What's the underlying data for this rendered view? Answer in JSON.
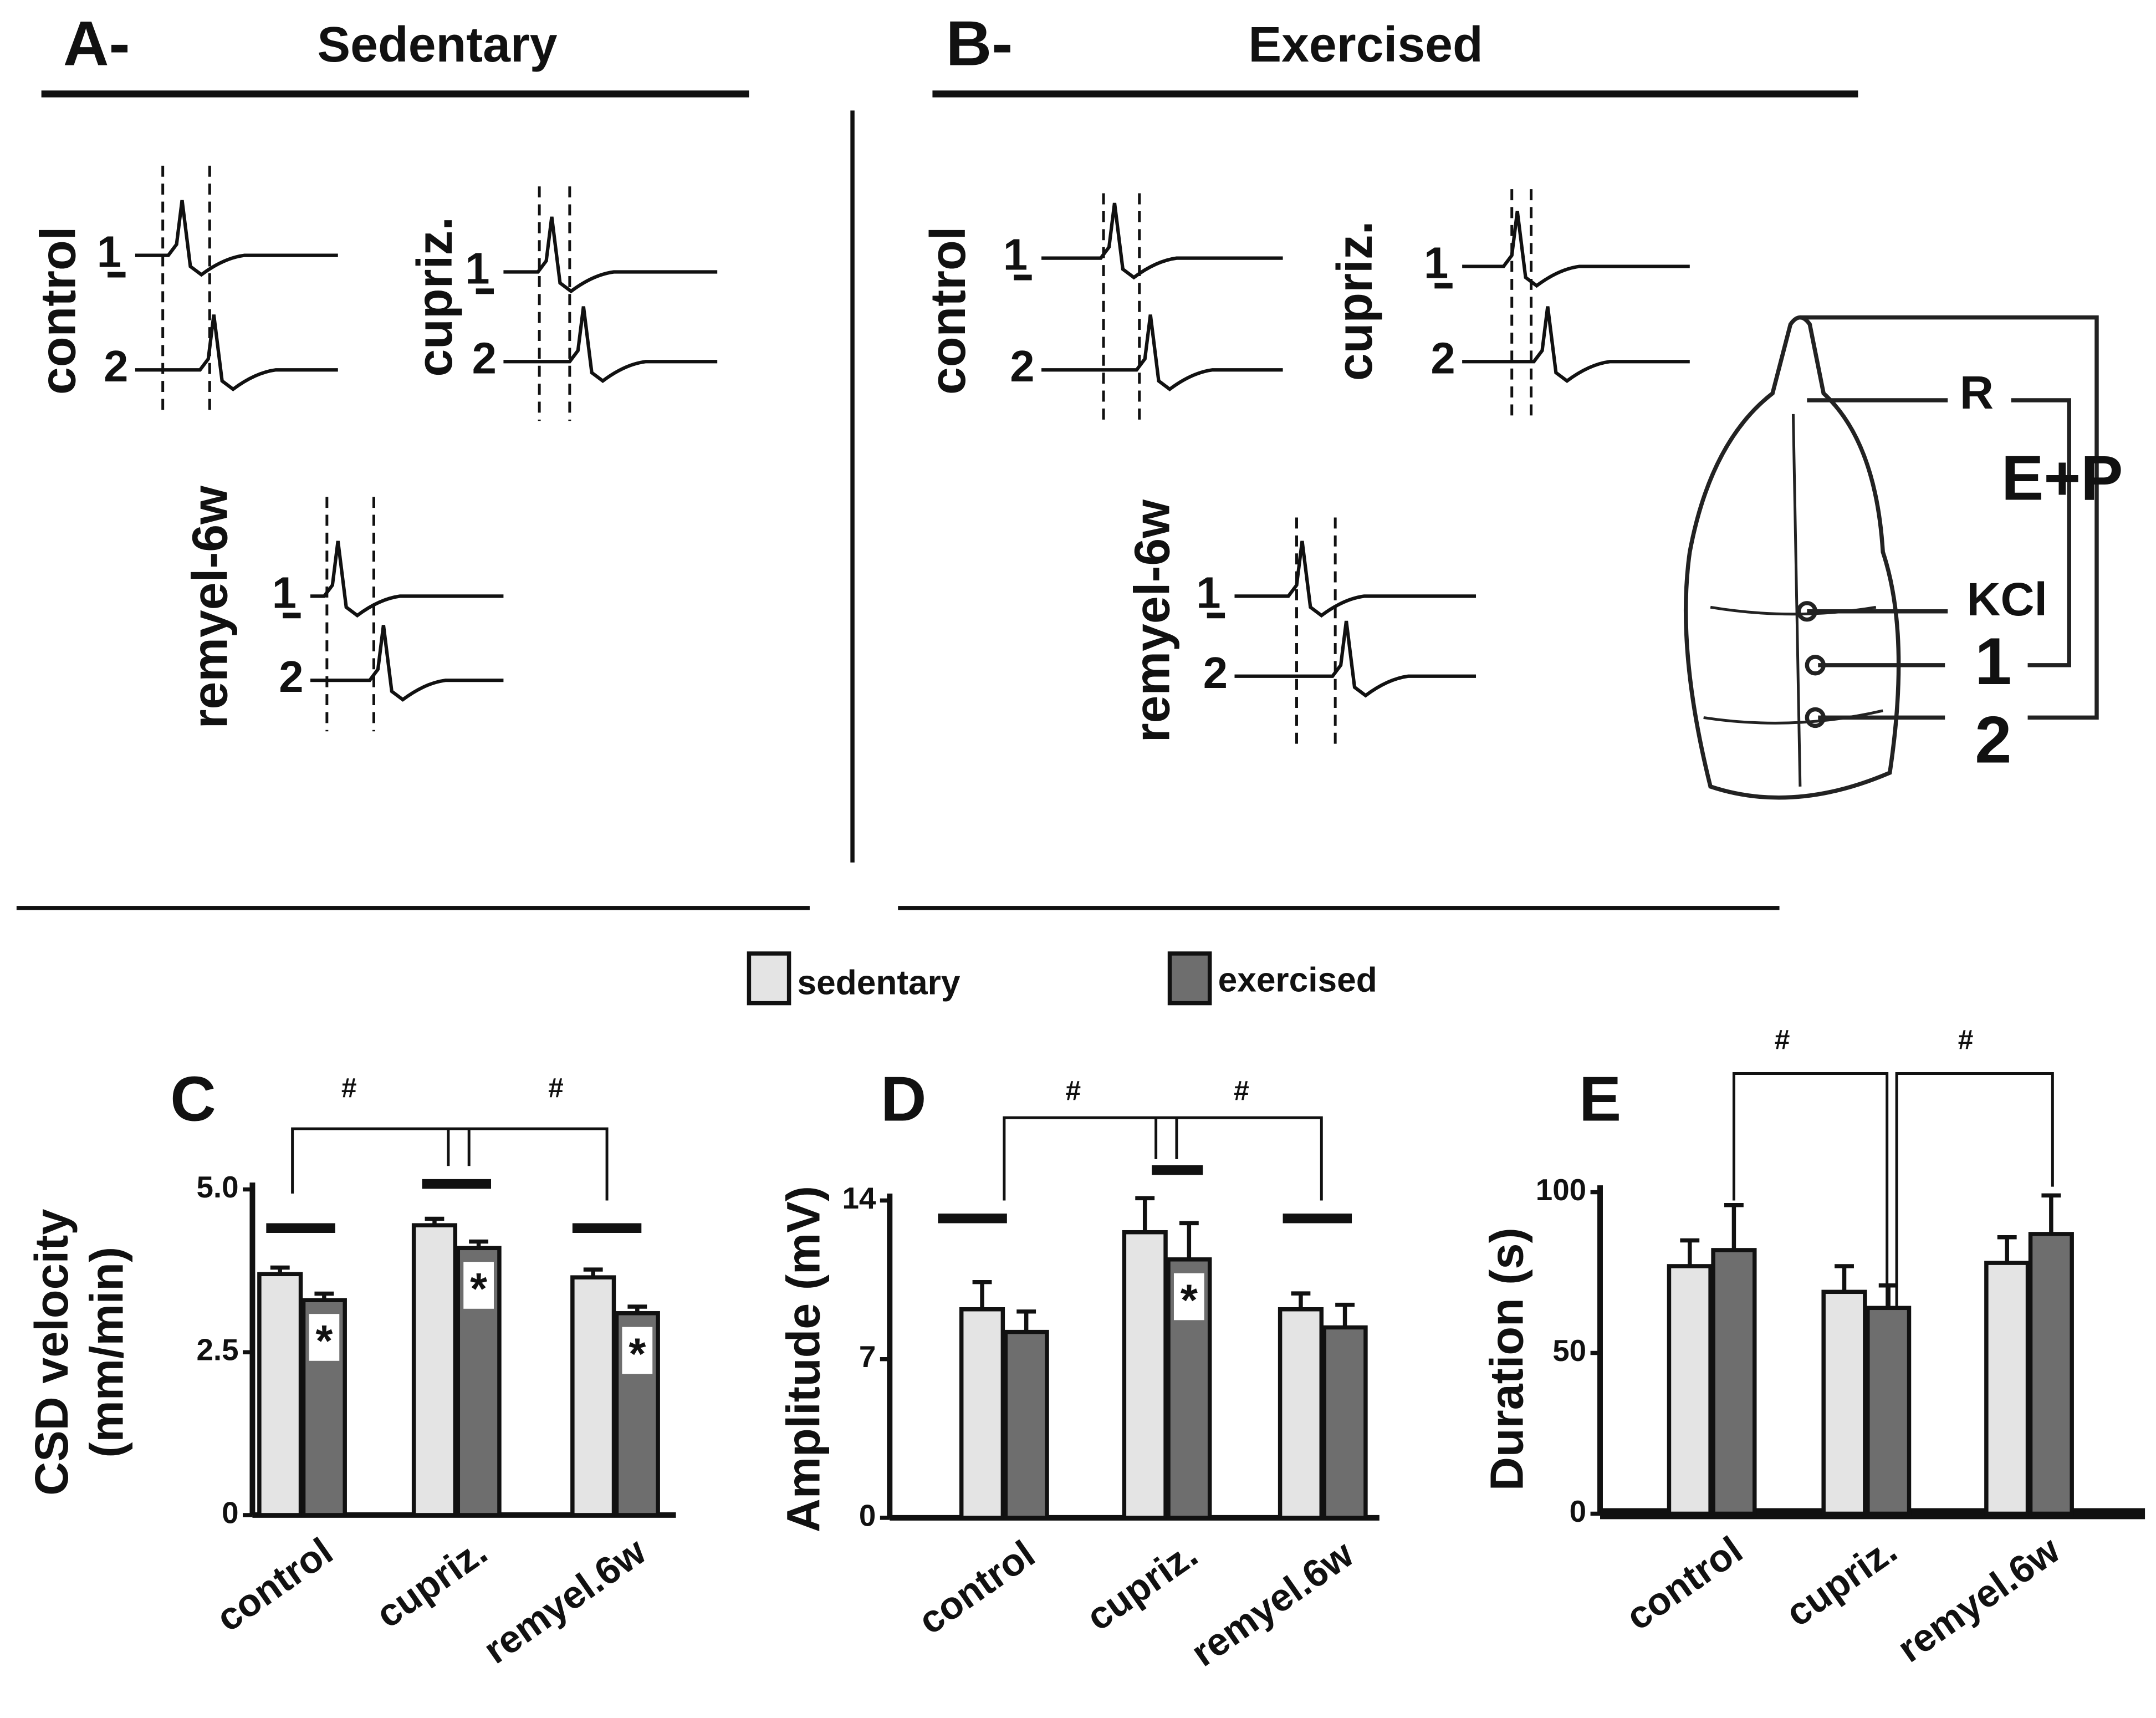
{
  "traces": [
    {
      "letter": "A-",
      "title": "Sedentary",
      "groups": [
        {
          "label": "control",
          "rows": [
            "1",
            "2"
          ]
        },
        {
          "label": "cupriz.",
          "rows": [
            "1",
            "2"
          ]
        },
        {
          "label": "remyel-6w",
          "rows": [
            "1",
            "2"
          ]
        }
      ]
    },
    {
      "letter": "B-",
      "title": "Exercised",
      "groups": [
        {
          "label": "control",
          "rows": [
            "1",
            "2"
          ]
        },
        {
          "label": "cupriz.",
          "rows": [
            "1",
            "2"
          ]
        },
        {
          "label": "remyel-6w",
          "rows": [
            "1",
            "2"
          ]
        }
      ]
    }
  ],
  "skull": {
    "labels": [
      "R",
      "E+P",
      "KCl",
      "1",
      "2"
    ]
  },
  "chart_data": [
    {
      "type": "bar",
      "panel": "C",
      "ylabel": [
        "CSD velocity",
        "(mm/min)"
      ],
      "categories": [
        "control",
        "cupriz.",
        "remyel.6w"
      ],
      "series": [
        {
          "name": "sedentary",
          "color": "#e4e4e4",
          "values": [
            3.7,
            4.45,
            3.65
          ],
          "errors": [
            0.1,
            0.1,
            0.12
          ]
        },
        {
          "name": "exercised",
          "color": "#6e6e6e",
          "values": [
            3.3,
            4.1,
            3.1
          ],
          "errors": [
            0.1,
            0.1,
            0.1
          ],
          "stars": [
            "*",
            "*",
            "*"
          ]
        }
      ],
      "annotations": [
        "#",
        "#"
      ],
      "ylim": [
        0,
        5
      ],
      "yticks": [
        0,
        2.5,
        {
          "value": 5,
          "label": "5.0"
        }
      ]
    },
    {
      "type": "bar",
      "panel": "D",
      "ylabel": [
        "Amplitude (mV)"
      ],
      "categories": [
        "control",
        "cupriz.",
        "remyel.6w"
      ],
      "series": [
        {
          "color": "#e4e4e4",
          "values": [
            9.2,
            12.6,
            9.2
          ],
          "errors": [
            1.2,
            1.5,
            0.7
          ]
        },
        {
          "color": "#6e6e6e",
          "values": [
            8.2,
            11.4,
            8.4
          ],
          "errors": [
            0.9,
            1.6,
            1.0
          ],
          "stars": [
            null,
            "*",
            null
          ]
        }
      ],
      "annotations": [
        "#",
        "#"
      ],
      "ylim": [
        0,
        14
      ],
      "yticks": [
        0,
        7,
        14
      ]
    },
    {
      "type": "bar",
      "panel": "E",
      "ylabel": [
        "Duration (s)"
      ],
      "categories": [
        "control",
        "cupriz.",
        "remyel.6w"
      ],
      "series": [
        {
          "color": "#e4e4e4",
          "values": [
            77,
            69,
            78
          ],
          "errors": [
            8,
            8,
            8
          ]
        },
        {
          "color": "#6e6e6e",
          "values": [
            82,
            64,
            87
          ],
          "errors": [
            14,
            7,
            12
          ]
        }
      ],
      "annotations": [
        "#",
        "#"
      ],
      "ylim": [
        0,
        100
      ],
      "yticks": [
        0,
        50,
        100
      ]
    }
  ]
}
